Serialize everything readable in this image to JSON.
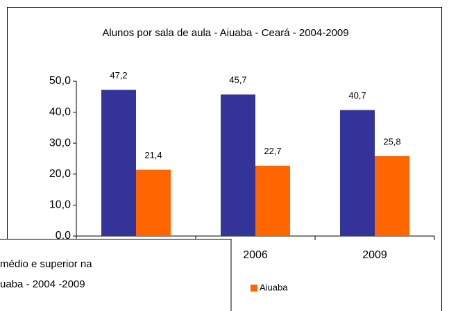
{
  "chart_data": {
    "type": "bar",
    "title": "Alunos por sala de aula - Aiuaba - Ceará - 2004-2009",
    "categories": [
      null,
      "2006",
      "2009"
    ],
    "series": [
      {
        "name": null,
        "color": "#333399",
        "values": [
          47.2,
          45.7,
          40.7
        ],
        "value_labels": [
          "47,2",
          "45,7",
          "40,7"
        ]
      },
      {
        "name": "Aiuaba",
        "color": "#ff6600",
        "values": [
          21.4,
          22.7,
          25.8
        ],
        "value_labels": [
          "21,4",
          "22,7",
          "25,8"
        ]
      }
    ],
    "ylim": [
      0,
      50
    ],
    "yticks": [
      {
        "value": 0,
        "label": "0,0"
      },
      {
        "value": 10,
        "label": "10,0"
      },
      {
        "value": 20,
        "label": "20,0"
      },
      {
        "value": 30,
        "label": "30,0"
      },
      {
        "value": 40,
        "label": "40,0"
      },
      {
        "value": 50,
        "label": "50,0"
      }
    ],
    "grid": false
  },
  "overlay": {
    "lines": [
      "médio e superior na",
      "uaba - 2004 -2009"
    ]
  }
}
